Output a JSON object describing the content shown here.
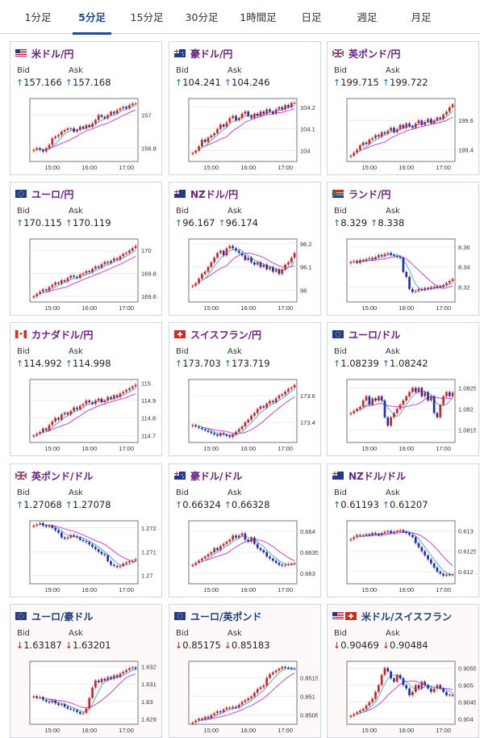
{
  "tabs": [
    {
      "label": "1分足",
      "active": false
    },
    {
      "label": "5分足",
      "active": true
    },
    {
      "label": "15分足",
      "active": false
    },
    {
      "label": "30分足",
      "active": false
    },
    {
      "label": "1時間足",
      "active": false
    },
    {
      "label": "日足",
      "active": false
    },
    {
      "label": "週足",
      "active": false
    },
    {
      "label": "月足",
      "active": false
    }
  ],
  "labels": {
    "bid": "Bid",
    "ask": "Ask"
  },
  "arrows": {
    "up": "↑",
    "down": "↓"
  },
  "colors": {
    "up_candle": "#d42020",
    "down_candle": "#2230a8",
    "ma_short": "#3fa5e8",
    "ma_long": "#cc33cc",
    "up_arrow": "#1b6bc4",
    "down_arrow": "#c41b1b"
  },
  "cards": [
    {
      "name": "米ドル/円",
      "flag": "US",
      "dir": "up",
      "bid": "157.166",
      "ask": "157.168",
      "chart": {
        "yticks": [
          "157",
          "156.8"
        ],
        "xticks": [
          "15:00",
          "16:00",
          "17:00"
        ],
        "ylim": [
          156.72,
          157.1
        ],
        "closes": [
          156.79,
          156.8,
          156.79,
          156.78,
          156.8,
          156.82,
          156.86,
          156.87,
          156.88,
          156.9,
          156.91,
          156.92,
          156.92,
          156.9,
          156.91,
          156.93,
          156.92,
          156.94,
          156.93,
          156.95,
          156.97,
          157.0,
          156.99,
          156.98,
          157.0,
          157.02,
          157.01,
          157.03,
          157.04,
          157.05,
          157.04,
          157.06,
          157.07,
          157.07
        ]
      }
    },
    {
      "name": "豪ドル/円",
      "flag": "AU",
      "dir": "up",
      "bid": "104.241",
      "ask": "104.246",
      "chart": {
        "yticks": [
          "104.2",
          "104.1",
          "104"
        ],
        "xticks": [
          "15:00",
          "16:00",
          "17:00"
        ],
        "ylim": [
          103.95,
          104.24
        ],
        "closes": [
          103.99,
          104.0,
          104.02,
          104.05,
          104.04,
          104.06,
          104.07,
          104.08,
          104.1,
          104.12,
          104.11,
          104.13,
          104.15,
          104.16,
          104.14,
          104.15,
          104.17,
          104.18,
          104.16,
          104.15,
          104.17,
          104.16,
          104.18,
          104.17,
          104.19,
          104.18,
          104.17,
          104.19,
          104.2,
          104.19,
          104.21,
          104.2,
          104.22,
          104.22
        ]
      }
    },
    {
      "name": "英ポンド/円",
      "flag": "GB",
      "dir": "up",
      "bid": "199.715",
      "ask": "199.722",
      "chart": {
        "yticks": [
          "199.6",
          "199.4"
        ],
        "xticks": [
          "15:00",
          "16:00",
          "17:00"
        ],
        "ylim": [
          199.32,
          199.75
        ],
        "closes": [
          199.36,
          199.38,
          199.4,
          199.43,
          199.45,
          199.44,
          199.47,
          199.48,
          199.5,
          199.49,
          199.52,
          199.51,
          199.53,
          199.55,
          199.52,
          199.54,
          199.57,
          199.55,
          199.58,
          199.56,
          199.55,
          199.58,
          199.6,
          199.57,
          199.59,
          199.61,
          199.58,
          199.6,
          199.62,
          199.61,
          199.64,
          199.66,
          199.69,
          199.71
        ]
      }
    },
    {
      "name": "ユーロ/円",
      "flag": "EU",
      "dir": "up",
      "bid": "170.115",
      "ask": "170.119",
      "chart": {
        "yticks": [
          "170",
          "169.8",
          "169.6"
        ],
        "xticks": [
          "15:00",
          "16:00",
          "17:00"
        ],
        "ylim": [
          169.55,
          170.1
        ],
        "closes": [
          169.6,
          169.62,
          169.64,
          169.66,
          169.65,
          169.68,
          169.7,
          169.72,
          169.71,
          169.74,
          169.73,
          169.76,
          169.78,
          169.77,
          169.76,
          169.79,
          169.8,
          169.82,
          169.81,
          169.84,
          169.86,
          169.85,
          169.88,
          169.9,
          169.89,
          169.91,
          169.93,
          169.92,
          169.95,
          169.97,
          169.98,
          170.0,
          170.02,
          170.04
        ]
      }
    },
    {
      "name": "NZドル/円",
      "flag": "NZ",
      "dir": "up",
      "bid": "96.167",
      "ask": "96.174",
      "chart": {
        "yticks": [
          "96.2",
          "96.1",
          "96"
        ],
        "xticks": [
          "15:00",
          "16:00",
          "17:00"
        ],
        "ylim": [
          95.95,
          96.22
        ],
        "closes": [
          96.02,
          96.03,
          96.05,
          96.07,
          96.08,
          96.1,
          96.12,
          96.14,
          96.16,
          96.17,
          96.15,
          96.18,
          96.19,
          96.18,
          96.17,
          96.16,
          96.15,
          96.13,
          96.14,
          96.12,
          96.11,
          96.12,
          96.1,
          96.11,
          96.09,
          96.1,
          96.08,
          96.09,
          96.07,
          96.09,
          96.11,
          96.12,
          96.14,
          96.16
        ]
      }
    },
    {
      "name": "ランド/円",
      "flag": "ZA",
      "dir": "up",
      "bid": "8.329",
      "ask": "8.338",
      "chart": {
        "yticks": [
          "8.36",
          "8.34",
          "8.32"
        ],
        "xticks": [
          "15:00",
          "16:00",
          "17:00"
        ],
        "ylim": [
          8.305,
          8.368
        ],
        "closes": [
          8.345,
          8.346,
          8.344,
          8.347,
          8.346,
          8.348,
          8.349,
          8.348,
          8.35,
          8.352,
          8.351,
          8.353,
          8.354,
          8.352,
          8.351,
          8.35,
          8.349,
          8.335,
          8.33,
          8.318,
          8.315,
          8.316,
          8.318,
          8.317,
          8.319,
          8.318,
          8.32,
          8.319,
          8.321,
          8.32,
          8.322,
          8.324,
          8.326,
          8.328
        ]
      }
    },
    {
      "name": "カナダドル/円",
      "flag": "CA",
      "dir": "up",
      "bid": "114.992",
      "ask": "114.998",
      "chart": {
        "yticks": [
          "115",
          "114.9",
          "114.8",
          "114.7"
        ],
        "xticks": [
          "15:00",
          "16:00",
          "17:00"
        ],
        "ylim": [
          114.66,
          115.02
        ],
        "closes": [
          114.7,
          114.71,
          114.72,
          114.74,
          114.73,
          114.76,
          114.78,
          114.8,
          114.79,
          114.82,
          114.83,
          114.82,
          114.84,
          114.86,
          114.85,
          114.87,
          114.88,
          114.9,
          114.89,
          114.88,
          114.9,
          114.91,
          114.89,
          114.9,
          114.92,
          114.91,
          114.93,
          114.92,
          114.94,
          114.95,
          114.96,
          114.97,
          114.98,
          114.99
        ]
      }
    },
    {
      "name": "スイスフラン/円",
      "flag": "CH",
      "dir": "up",
      "bid": "173.703",
      "ask": "173.719",
      "chart": {
        "yticks": [
          "173.6",
          "173.4"
        ],
        "xticks": [
          "15:00",
          "16:00",
          "17:00"
        ],
        "ylim": [
          173.25,
          173.72
        ],
        "closes": [
          173.38,
          173.37,
          173.36,
          173.35,
          173.34,
          173.33,
          173.32,
          173.31,
          173.3,
          173.32,
          173.31,
          173.3,
          173.29,
          173.31,
          173.33,
          173.35,
          173.37,
          173.4,
          173.42,
          173.45,
          173.47,
          173.5,
          173.52,
          173.51,
          173.54,
          173.56,
          173.55,
          173.58,
          173.6,
          173.61,
          173.63,
          173.65,
          173.66,
          173.68
        ]
      }
    },
    {
      "name": "ユーロ/ドル",
      "flag": "EU",
      "dir": "up",
      "bid": "1.08239",
      "ask": "1.08242",
      "chart": {
        "yticks": [
          "1.0825",
          "1.082",
          "1.0815"
        ],
        "xticks": [
          "15:00",
          "16:00",
          "17:00"
        ],
        "ylim": [
          1.0812,
          1.0827
        ],
        "closes": [
          1.0819,
          1.08195,
          1.082,
          1.08205,
          1.0822,
          1.0823,
          1.0821,
          1.08225,
          1.0822,
          1.0823,
          1.0822,
          1.0818,
          1.0816,
          1.0818,
          1.0819,
          1.082,
          1.0821,
          1.0822,
          1.0823,
          1.0824,
          1.0825,
          1.0824,
          1.0825,
          1.0823,
          1.0824,
          1.0822,
          1.0823,
          1.0819,
          1.0818,
          1.0821,
          1.0823,
          1.0824,
          1.0823,
          1.08239
        ]
      }
    },
    {
      "name": "英ポンド/ドル",
      "flag": "GB",
      "dir": "up",
      "bid": "1.27068",
      "ask": "1.27078",
      "chart": {
        "yticks": [
          "1.272",
          "1.271",
          "1.27"
        ],
        "xticks": [
          "15:00",
          "16:00",
          "17:00"
        ],
        "ylim": [
          1.26965,
          1.2723
        ],
        "closes": [
          1.2721,
          1.27215,
          1.2722,
          1.2721,
          1.27205,
          1.2721,
          1.272,
          1.2719,
          1.2718,
          1.2716,
          1.27155,
          1.2716,
          1.2717,
          1.27165,
          1.2716,
          1.2715,
          1.27145,
          1.2714,
          1.2713,
          1.2712,
          1.2711,
          1.271,
          1.2709,
          1.27085,
          1.2706,
          1.27045,
          1.2704,
          1.27035,
          1.2704,
          1.2705,
          1.27055,
          1.2706,
          1.27062,
          1.27068
        ]
      }
    },
    {
      "name": "豪ドル/ドル",
      "flag": "AU",
      "dir": "up",
      "bid": "0.66324",
      "ask": "0.66328",
      "chart": {
        "yticks": [
          "0.664",
          "0.6635",
          "0.663"
        ],
        "xticks": [
          "15:00",
          "16:00",
          "17:00"
        ],
        "ylim": [
          0.66275,
          0.66425
        ],
        "closes": [
          0.6632,
          0.66325,
          0.6633,
          0.66335,
          0.6634,
          0.66345,
          0.6635,
          0.6636,
          0.66355,
          0.66365,
          0.6637,
          0.66375,
          0.6638,
          0.6639,
          0.66385,
          0.6639,
          0.66395,
          0.6638,
          0.66375,
          0.66385,
          0.6637,
          0.6636,
          0.66355,
          0.6635,
          0.6634,
          0.66335,
          0.6633,
          0.66325,
          0.6632,
          0.66318,
          0.6632,
          0.66322,
          0.66323,
          0.66324
        ]
      }
    },
    {
      "name": "NZドル/ドル",
      "flag": "NZ",
      "dir": "up",
      "bid": "0.61193",
      "ask": "0.61207",
      "chart": {
        "yticks": [
          "0.613",
          "0.6125",
          "0.612"
        ],
        "xticks": [
          "15:00",
          "16:00",
          "17:00"
        ],
        "ylim": [
          0.6117,
          0.61325
        ],
        "closes": [
          0.6128,
          0.61285,
          0.6129,
          0.61288,
          0.6129,
          0.61292,
          0.6129,
          0.61295,
          0.61293,
          0.6129,
          0.61295,
          0.61298,
          0.613,
          0.61295,
          0.61298,
          0.613,
          0.61302,
          0.61298,
          0.61295,
          0.6129,
          0.61285,
          0.6127,
          0.6126,
          0.6125,
          0.6124,
          0.6123,
          0.6122,
          0.6121,
          0.612,
          0.61195,
          0.6119,
          0.61193,
          0.61192,
          0.61193
        ]
      }
    },
    {
      "name": "ユーロ/豪ドル",
      "flag": "EU",
      "dir": "down",
      "bid": "1.63187",
      "ask": "1.63201",
      "chart": {
        "yticks": [
          "1.632",
          "1.631",
          "1.63",
          "1.629"
        ],
        "xticks": [
          "15:00",
          "16:00",
          "17:00"
        ],
        "ylim": [
          1.6287,
          1.6323
        ],
        "closes": [
          1.6303,
          1.6302,
          1.63025,
          1.6301,
          1.63,
          1.62995,
          1.63005,
          1.6299,
          1.6298,
          1.62985,
          1.6297,
          1.6296,
          1.62955,
          1.6295,
          1.6294,
          1.6293,
          1.62935,
          1.6296,
          1.6302,
          1.6308,
          1.6312,
          1.6311,
          1.6313,
          1.6312,
          1.6314,
          1.6313,
          1.6315,
          1.6314,
          1.6316,
          1.6317,
          1.6318,
          1.6319,
          1.63195,
          1.63187
        ]
      }
    },
    {
      "name": "ユーロ/英ポンド",
      "flag": "EU",
      "dir": "down",
      "bid": "0.85175",
      "ask": "0.85183",
      "chart": {
        "yticks": [
          "0.8515",
          "0.851",
          "0.8505"
        ],
        "xticks": [
          "15:00",
          "16:00",
          "17:00"
        ],
        "ylim": [
          0.85025,
          0.85195
        ],
        "closes": [
          0.8503,
          0.85035,
          0.8504,
          0.85038,
          0.85045,
          0.85042,
          0.8505,
          0.85055,
          0.8506,
          0.85058,
          0.85065,
          0.8507,
          0.85068,
          0.85072,
          0.8507,
          0.85078,
          0.85085,
          0.8509,
          0.85095,
          0.851,
          0.8511,
          0.8512,
          0.85125,
          0.8513,
          0.8515,
          0.8516,
          0.85165,
          0.8517,
          0.85175,
          0.8518,
          0.85178,
          0.85176,
          0.85175,
          0.85175
        ]
      }
    },
    {
      "name": "米ドル/スイスフラン",
      "flag": "US-CH",
      "dir": "down",
      "bid": "0.90469",
      "ask": "0.90484",
      "chart": {
        "yticks": [
          "0.9055",
          "0.905",
          "0.9045",
          "0.904"
        ],
        "xticks": [
          "15:00",
          "16:00",
          "17:00"
        ],
        "ylim": [
          0.90385,
          0.9057
        ],
        "closes": [
          0.9041,
          0.90415,
          0.9042,
          0.90425,
          0.9043,
          0.9044,
          0.9045,
          0.9046,
          0.9048,
          0.905,
          0.9053,
          0.9055,
          0.9054,
          0.9052,
          0.9051,
          0.9053,
          0.9052,
          0.905,
          0.9049,
          0.9047,
          0.9048,
          0.905,
          0.9049,
          0.9051,
          0.905,
          0.9049,
          0.9048,
          0.9049,
          0.905,
          0.9049,
          0.9048,
          0.9047,
          0.90472,
          0.90469
        ]
      }
    }
  ]
}
